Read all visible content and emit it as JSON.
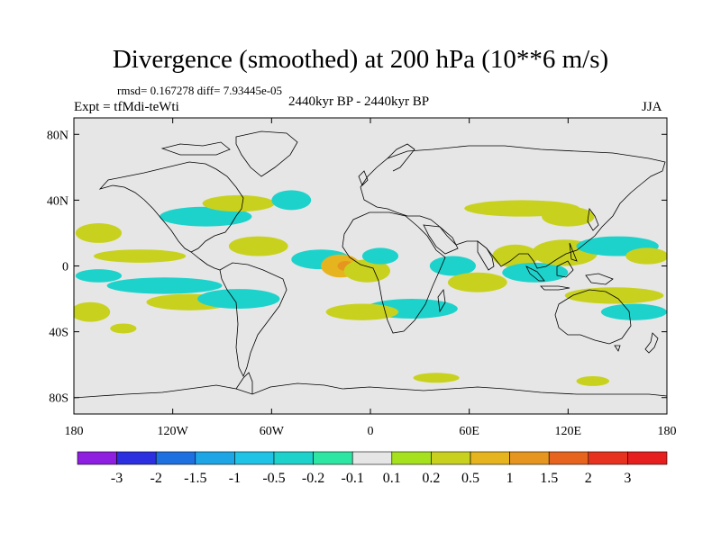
{
  "colors": {
    "background": "#e6e6e6",
    "coast": "#000000"
  },
  "chart_data": {
    "type": "heatmap",
    "title": "Divergence (smoothed) at 200 hPa (10**6 m/s)",
    "stats_label": "rmsd= 0.167278 diff= 7.93445e-05",
    "experiment_label": "Expt = tfMdi-teWti",
    "period_label": "2440kyr BP - 2440kyr BP",
    "season_label": "JJA",
    "projection": "cylindrical equidistant",
    "xlim": [
      -180,
      180
    ],
    "ylim": [
      -90,
      90
    ],
    "x_ticks": [
      {
        "value": -180,
        "label": "180"
      },
      {
        "value": -120,
        "label": "120W"
      },
      {
        "value": -60,
        "label": "60W"
      },
      {
        "value": 0,
        "label": "0"
      },
      {
        "value": 60,
        "label": "60E"
      },
      {
        "value": 120,
        "label": "120E"
      },
      {
        "value": 180,
        "label": "180"
      }
    ],
    "y_ticks": [
      {
        "value": 80,
        "label": "80N"
      },
      {
        "value": 40,
        "label": "40N"
      },
      {
        "value": 0,
        "label": "0"
      },
      {
        "value": -40,
        "label": "40S"
      },
      {
        "value": -80,
        "label": "80S"
      }
    ],
    "colorbar": {
      "levels": [
        "-3",
        "-2",
        "-1.5",
        "-1",
        "-0.5",
        "-0.2",
        "-0.1",
        "0.1",
        "0.2",
        "0.5",
        "1",
        "1.5",
        "2",
        "3"
      ],
      "colors": [
        "#8e1ee0",
        "#2b2fe0",
        "#1e6fe0",
        "#1ea5e6",
        "#1ec3e6",
        "#1ed2cc",
        "#2ee6a3",
        "#e6e6e6",
        "#a6e11e",
        "#c8d21e",
        "#e6b41e",
        "#e6961e",
        "#e6641e",
        "#e6321e",
        "#e61e1e"
      ]
    },
    "anomaly_regions": [
      {
        "lon": -165,
        "lat": 20,
        "rlon": 14,
        "rlat": 6,
        "value": 0.3
      },
      {
        "lon": -140,
        "lat": 6,
        "rlon": 28,
        "rlat": 4,
        "value": 0.3
      },
      {
        "lon": -125,
        "lat": -12,
        "rlon": 35,
        "rlat": 5,
        "value": -0.3
      },
      {
        "lon": -165,
        "lat": -6,
        "rlon": 14,
        "rlat": 4,
        "value": -0.3
      },
      {
        "lon": -110,
        "lat": -22,
        "rlon": 26,
        "rlat": 5,
        "value": 0.3
      },
      {
        "lon": -170,
        "lat": -28,
        "rlon": 12,
        "rlat": 6,
        "value": 0.3
      },
      {
        "lon": -80,
        "lat": -20,
        "rlon": 25,
        "rlat": 6,
        "value": -0.3
      },
      {
        "lon": -100,
        "lat": 30,
        "rlon": 28,
        "rlat": 6,
        "value": -0.3
      },
      {
        "lon": -80,
        "lat": 38,
        "rlon": 22,
        "rlat": 5,
        "value": 0.3
      },
      {
        "lon": -68,
        "lat": 12,
        "rlon": 18,
        "rlat": 6,
        "value": 0.3
      },
      {
        "lon": -48,
        "lat": 40,
        "rlon": 12,
        "rlat": 6,
        "value": -0.3
      },
      {
        "lon": -30,
        "lat": 4,
        "rlon": 18,
        "rlat": 6,
        "value": -0.3
      },
      {
        "lon": -18,
        "lat": 0,
        "rlon": 12,
        "rlat": 7,
        "value": 0.6
      },
      {
        "lon": -15,
        "lat": 0,
        "rlon": 5,
        "rlat": 3,
        "value": 1.2
      },
      {
        "lon": -2,
        "lat": -3,
        "rlon": 14,
        "rlat": 7,
        "value": 0.3
      },
      {
        "lon": 6,
        "lat": 6,
        "rlon": 11,
        "rlat": 5,
        "value": -0.3
      },
      {
        "lon": 25,
        "lat": -26,
        "rlon": 28,
        "rlat": 6,
        "value": -0.3
      },
      {
        "lon": -5,
        "lat": -28,
        "rlon": 22,
        "rlat": 5,
        "value": 0.3
      },
      {
        "lon": 50,
        "lat": 0,
        "rlon": 14,
        "rlat": 6,
        "value": -0.4
      },
      {
        "lon": 65,
        "lat": -10,
        "rlon": 18,
        "rlat": 6,
        "value": 0.4
      },
      {
        "lon": 88,
        "lat": 6,
        "rlon": 14,
        "rlat": 7,
        "value": 0.3
      },
      {
        "lon": 100,
        "lat": -4,
        "rlon": 20,
        "rlat": 6,
        "value": -0.3
      },
      {
        "lon": 118,
        "lat": 8,
        "rlon": 20,
        "rlat": 8,
        "value": 0.3
      },
      {
        "lon": 92,
        "lat": 35,
        "rlon": 35,
        "rlat": 5,
        "value": 0.3
      },
      {
        "lon": 120,
        "lat": 30,
        "rlon": 16,
        "rlat": 6,
        "value": 0.3
      },
      {
        "lon": 150,
        "lat": 12,
        "rlon": 25,
        "rlat": 6,
        "value": -0.3
      },
      {
        "lon": 148,
        "lat": -18,
        "rlon": 30,
        "rlat": 5,
        "value": 0.3
      },
      {
        "lon": 168,
        "lat": 6,
        "rlon": 13,
        "rlat": 5,
        "value": 0.3
      },
      {
        "lon": 160,
        "lat": -28,
        "rlon": 20,
        "rlat": 5,
        "value": -0.3
      },
      {
        "lon": 40,
        "lat": -68,
        "rlon": 14,
        "rlat": 3,
        "value": 0.3
      },
      {
        "lon": 135,
        "lat": -70,
        "rlon": 10,
        "rlat": 3,
        "value": 0.3
      },
      {
        "lon": -150,
        "lat": -38,
        "rlon": 8,
        "rlat": 3,
        "value": 0.3
      }
    ]
  }
}
